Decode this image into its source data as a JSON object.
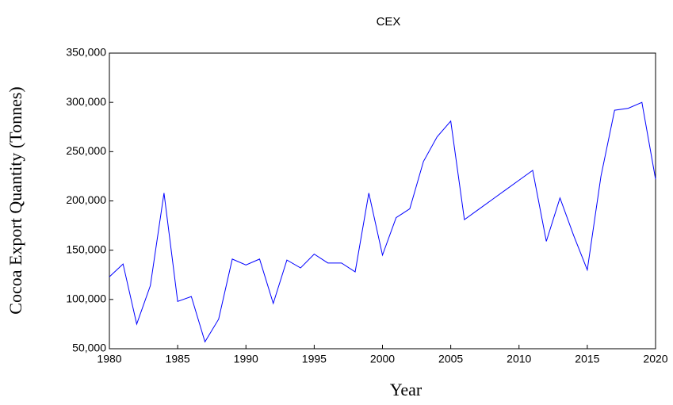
{
  "chart_data": {
    "type": "line",
    "title": "CEX",
    "x_label": "Year",
    "y_label": "Cocoa Export Quantity (Tonnes)",
    "x": [
      1980,
      1981,
      1982,
      1983,
      1984,
      1985,
      1986,
      1987,
      1988,
      1989,
      1990,
      1991,
      1992,
      1993,
      1994,
      1995,
      1996,
      1997,
      1998,
      1999,
      2000,
      2001,
      2002,
      2003,
      2004,
      2005,
      2006,
      2007,
      2008,
      2009,
      2010,
      2011,
      2012,
      2013,
      2014,
      2015,
      2016,
      2017,
      2018,
      2019,
      2020
    ],
    "series": [
      {
        "name": "CEX",
        "color": "#0000ff",
        "values": [
          123000,
          136000,
          75000,
          114000,
          208000,
          98000,
          103000,
          57000,
          80000,
          141000,
          135000,
          141000,
          96000,
          140000,
          132000,
          146000,
          137000,
          137000,
          128000,
          208000,
          145000,
          183000,
          192000,
          240000,
          265000,
          281000,
          181000,
          191000,
          201000,
          211000,
          221000,
          231000,
          159000,
          203000,
          165000,
          130000,
          225000,
          292000,
          294000,
          300000,
          222000
        ]
      }
    ],
    "xlim": [
      1980,
      2020
    ],
    "xticks": [
      1980,
      1985,
      1990,
      1995,
      2000,
      2005,
      2010,
      2015,
      2020
    ],
    "ylim": [
      50000,
      350000
    ],
    "yticks": [
      {
        "value": 50000,
        "label": "50,000"
      },
      {
        "value": 100000,
        "label": "100,000"
      },
      {
        "value": 150000,
        "label": "150,000"
      },
      {
        "value": 200000,
        "label": "200,000"
      },
      {
        "value": 250000,
        "label": "250,000"
      },
      {
        "value": 300000,
        "label": "300,000"
      },
      {
        "value": 350000,
        "label": "350,000"
      }
    ],
    "grid": false
  }
}
